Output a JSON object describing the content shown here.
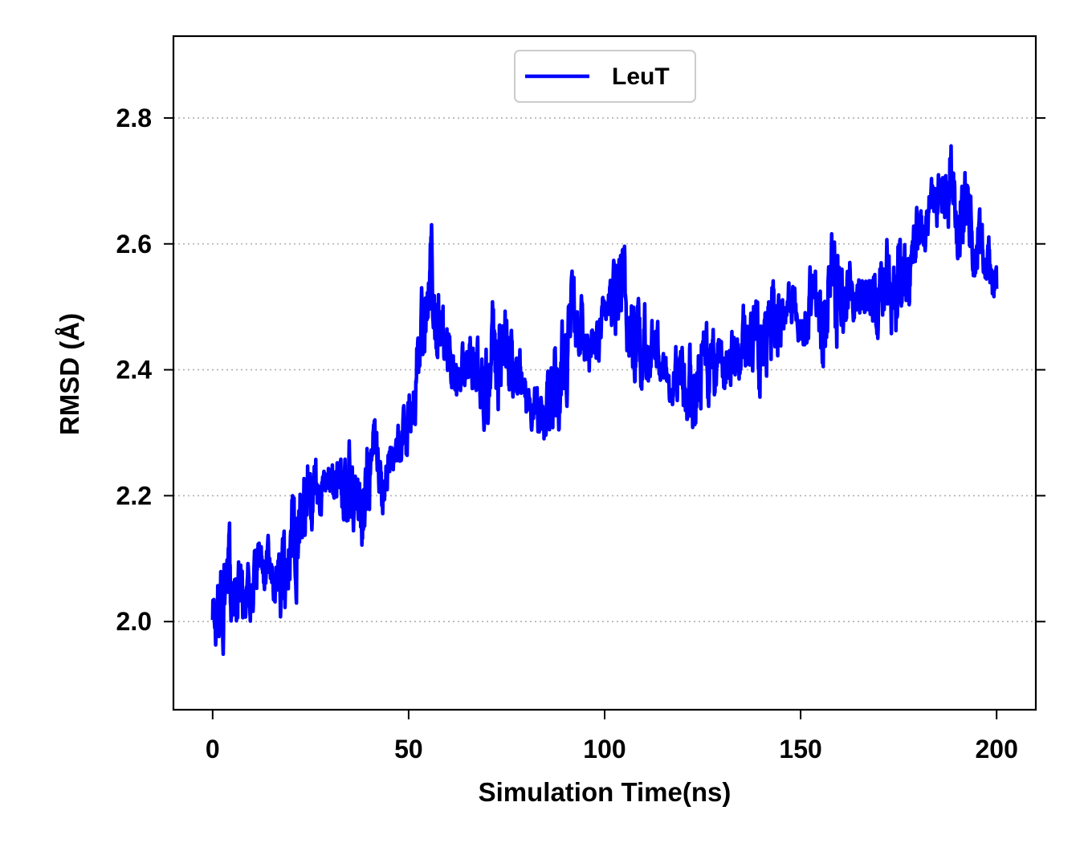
{
  "chart_data": {
    "type": "line",
    "xlabel": "Simulation Time(ns)",
    "ylabel": "RMSD (Å)",
    "xlim": [
      -10,
      210
    ],
    "ylim": [
      1.86,
      2.93
    ],
    "xticks": [
      0,
      50,
      100,
      150,
      200
    ],
    "xtick_labels": [
      "0",
      "50",
      "100",
      "150",
      "200"
    ],
    "yticks": [
      2.0,
      2.2,
      2.4,
      2.6,
      2.8
    ],
    "ytick_labels": [
      "2.0",
      "2.2",
      "2.4",
      "2.6",
      "2.8"
    ],
    "grid": "horizontal dotted",
    "legend_position": "top-center",
    "colors": {
      "series": "#0000ff",
      "grid": "#b0b0b0",
      "axes": "#000000"
    },
    "series": [
      {
        "name": "LeuT",
        "x": [
          0,
          2,
          4,
          6,
          8,
          10,
          12,
          14,
          16,
          18,
          20,
          22,
          24,
          26,
          28,
          30,
          32,
          34,
          36,
          38,
          40,
          42,
          44,
          46,
          48,
          50,
          52,
          54,
          56,
          58,
          60,
          62,
          64,
          66,
          68,
          70,
          72,
          74,
          76,
          78,
          80,
          82,
          84,
          86,
          88,
          90,
          92,
          94,
          96,
          98,
          100,
          102,
          104,
          106,
          108,
          110,
          112,
          114,
          116,
          118,
          120,
          122,
          124,
          126,
          128,
          130,
          132,
          134,
          136,
          138,
          140,
          142,
          144,
          146,
          148,
          150,
          152,
          154,
          156,
          158,
          160,
          162,
          164,
          166,
          168,
          170,
          172,
          174,
          176,
          178,
          180,
          182,
          184,
          186,
          188,
          190,
          192,
          194,
          196,
          198,
          200
        ],
        "y": [
          2.0,
          2.03,
          2.05,
          2.06,
          2.05,
          2.04,
          2.1,
          2.08,
          2.05,
          2.08,
          2.12,
          2.18,
          2.2,
          2.22,
          2.2,
          2.24,
          2.22,
          2.2,
          2.22,
          2.18,
          2.24,
          2.26,
          2.23,
          2.26,
          2.28,
          2.32,
          2.42,
          2.45,
          2.55,
          2.45,
          2.4,
          2.38,
          2.4,
          2.42,
          2.4,
          2.38,
          2.42,
          2.42,
          2.4,
          2.4,
          2.36,
          2.34,
          2.32,
          2.36,
          2.38,
          2.42,
          2.46,
          2.46,
          2.42,
          2.44,
          2.48,
          2.5,
          2.52,
          2.48,
          2.46,
          2.44,
          2.44,
          2.42,
          2.4,
          2.4,
          2.38,
          2.38,
          2.38,
          2.4,
          2.4,
          2.4,
          2.42,
          2.42,
          2.44,
          2.46,
          2.44,
          2.46,
          2.48,
          2.5,
          2.5,
          2.48,
          2.5,
          2.5,
          2.5,
          2.52,
          2.52,
          2.52,
          2.52,
          2.5,
          2.52,
          2.5,
          2.52,
          2.54,
          2.56,
          2.58,
          2.62,
          2.64,
          2.68,
          2.66,
          2.7,
          2.68,
          2.68,
          2.62,
          2.6,
          2.56,
          2.52
        ]
      }
    ]
  }
}
